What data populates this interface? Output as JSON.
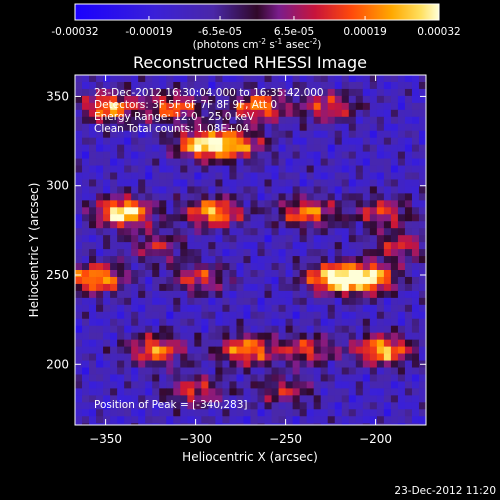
{
  "chart_data": {
    "type": "heatmap",
    "title": "Reconstructed RHESSI Image",
    "xlabel": "Heliocentric X (arcsec)",
    "ylabel": "Heliocentric Y (arcsec)",
    "xlim": [
      -367,
      -172
    ],
    "ylim": [
      166,
      362
    ],
    "xticks": [
      -350,
      -300,
      -250,
      -200
    ],
    "yticks": [
      200,
      250,
      300,
      350
    ],
    "colorbar": {
      "min": -0.00032,
      "max": 0.00032,
      "tick_values": [
        -0.00032,
        -0.00019,
        -6.5e-05,
        6.5e-05,
        0.00019,
        0.00032
      ],
      "tick_labels": [
        "-0.00032",
        "-0.00019",
        "-6.5e-05",
        "6.5e-05",
        "0.00019",
        "0.00032"
      ],
      "label_base": "(photons cm",
      "label_exp1": "-2",
      "label_mid1": " s",
      "label_exp2": "-1",
      "label_mid2": " asec",
      "label_exp3": "-2",
      "label_end": ")"
    },
    "annotations": [
      "23-Dec-2012 16:30:04.000 to 16:35:42.000",
      "Detectors: 3F 5F 6F 7F 8F 9F, Att 0",
      "Energy Range: 12.0 - 25.0 keV",
      "Clean     Total counts: 1.08E+04"
    ],
    "peak_label": "Position of Peak = [-340,283]",
    "peak": [
      -340,
      283
    ],
    "bands": [
      {
        "y": 344,
        "peaks": [
          {
            "x": -348,
            "amp": 0.78
          },
          {
            "x": -312,
            "amp": 0.65
          },
          {
            "x": -265,
            "amp": 0.72
          },
          {
            "x": -226,
            "amp": 0.58
          }
        ]
      },
      {
        "y": 323,
        "peaks": [
          {
            "x": -296,
            "amp": 0.88
          },
          {
            "x": -276,
            "amp": 0.6
          }
        ]
      },
      {
        "y": 285,
        "peaks": [
          {
            "x": -340,
            "amp": 1.0
          },
          {
            "x": -290,
            "amp": 0.82
          },
          {
            "x": -238,
            "amp": 0.7
          },
          {
            "x": -196,
            "amp": 0.55
          }
        ]
      },
      {
        "y": 266,
        "peaks": [
          {
            "x": -322,
            "amp": 0.45
          },
          {
            "x": -186,
            "amp": 0.5
          }
        ]
      },
      {
        "y": 248,
        "peaks": [
          {
            "x": -355,
            "amp": 0.82
          },
          {
            "x": -298,
            "amp": 0.55
          },
          {
            "x": -225,
            "amp": 0.8
          },
          {
            "x": -205,
            "amp": 0.95
          }
        ]
      },
      {
        "y": 208,
        "peaks": [
          {
            "x": -322,
            "amp": 0.72
          },
          {
            "x": -272,
            "amp": 0.75
          },
          {
            "x": -238,
            "amp": 0.55
          },
          {
            "x": -196,
            "amp": 0.85
          }
        ]
      },
      {
        "y": 185,
        "peaks": [
          {
            "x": -300,
            "amp": 0.55
          },
          {
            "x": -250,
            "amp": 0.45
          }
        ]
      }
    ],
    "colormap": [
      {
        "v": 0.0,
        "color": "#1a00ff"
      },
      {
        "v": 0.22,
        "color": "#3a20d8"
      },
      {
        "v": 0.38,
        "color": "#4a28a8"
      },
      {
        "v": 0.5,
        "color": "#300828"
      },
      {
        "v": 0.56,
        "color": "#7a1c8c"
      },
      {
        "v": 0.66,
        "color": "#c8143a"
      },
      {
        "v": 0.76,
        "color": "#ff4a0a"
      },
      {
        "v": 0.87,
        "color": "#ffa800"
      },
      {
        "v": 0.95,
        "color": "#ffe060"
      },
      {
        "v": 1.0,
        "color": "#ffffd8"
      }
    ]
  },
  "timestamp": "23-Dec-2012 11:20"
}
